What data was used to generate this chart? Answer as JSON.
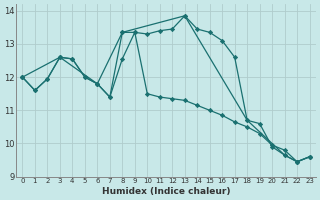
{
  "background_color": "#c8e8e8",
  "grid_color": "#b0cccc",
  "line_color": "#1a7070",
  "xlabel": "Humidex (Indice chaleur)",
  "xlim": [
    -0.5,
    23.5
  ],
  "ylim": [
    9,
    14.2
  ],
  "yticks": [
    9,
    10,
    11,
    12,
    13,
    14
  ],
  "xticks": [
    0,
    1,
    2,
    3,
    4,
    5,
    6,
    7,
    8,
    9,
    10,
    11,
    12,
    13,
    14,
    15,
    16,
    17,
    18,
    19,
    20,
    21,
    22,
    23
  ],
  "line1_x": [
    0,
    1,
    2,
    3,
    4,
    5,
    6,
    7,
    8,
    9,
    10,
    11,
    12,
    13,
    14,
    15,
    16,
    17,
    18,
    19,
    20,
    21,
    22,
    23
  ],
  "line1_y": [
    12.0,
    11.6,
    11.95,
    12.6,
    12.55,
    12.0,
    11.8,
    11.4,
    12.55,
    13.35,
    11.5,
    11.4,
    11.35,
    11.3,
    11.15,
    11.0,
    10.85,
    10.65,
    10.5,
    10.3,
    9.95,
    9.8,
    9.45,
    9.6
  ],
  "line2_x": [
    0,
    1,
    2,
    3,
    4,
    5,
    6,
    7,
    8,
    9,
    10,
    11,
    12,
    13,
    14,
    15,
    16,
    17,
    18,
    19,
    20,
    21,
    22,
    23
  ],
  "line2_y": [
    12.0,
    11.6,
    11.95,
    12.6,
    12.55,
    12.0,
    11.8,
    11.4,
    13.35,
    13.35,
    13.3,
    13.4,
    13.45,
    13.85,
    13.45,
    13.35,
    13.1,
    12.6,
    10.7,
    10.6,
    9.9,
    9.65,
    9.45,
    9.6
  ],
  "line3_x": [
    0,
    3,
    6,
    8,
    13,
    18,
    21,
    22,
    23
  ],
  "line3_y": [
    12.0,
    12.6,
    11.8,
    13.35,
    13.85,
    10.7,
    9.65,
    9.45,
    9.6
  ]
}
